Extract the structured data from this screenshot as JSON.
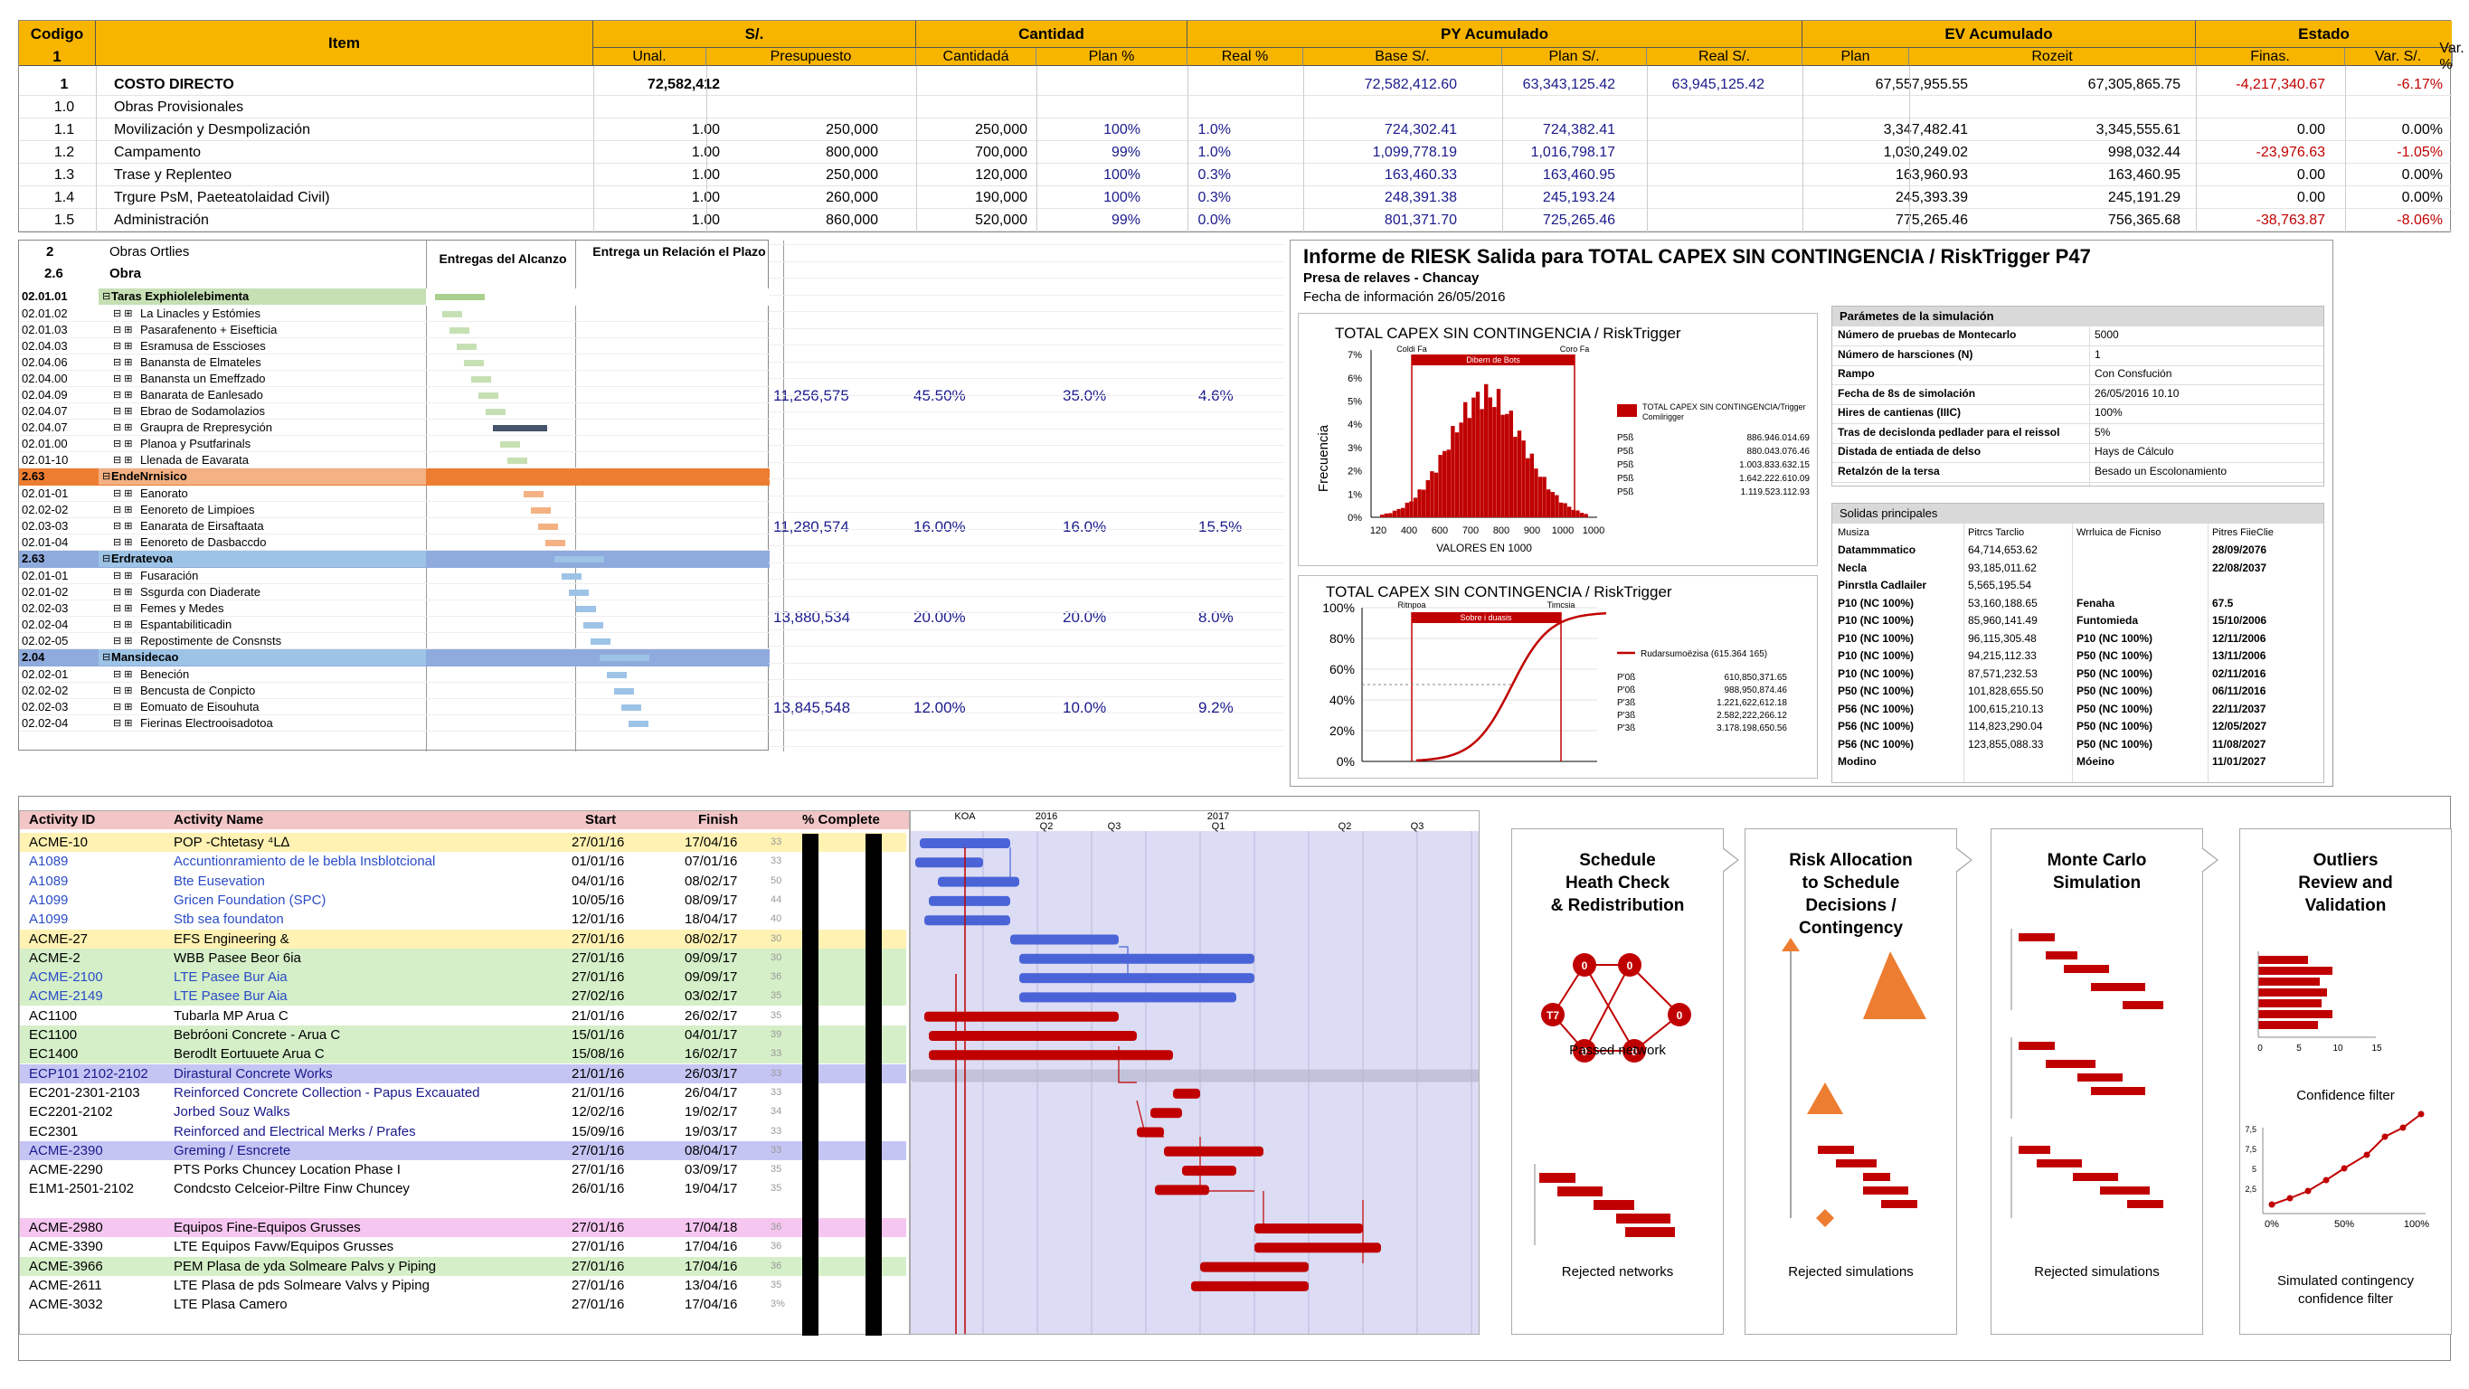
{
  "top_table": {
    "headers": {
      "codigo": "Codigo",
      "codigo_sub": "1",
      "item": "Item",
      "soles": "S/.",
      "cantidad": "Cantidad",
      "py": "PY Acumulado",
      "ev": "EV Acumulado",
      "estado": "Estado",
      "sub": [
        "Unal.",
        "Presupuesto",
        "Cantidadá",
        "Plan %",
        "Real %",
        "Base S/.",
        "Plan S/.",
        "Real S/.",
        "Plan",
        "Rozeit",
        "Finas.",
        "Var. S/.",
        "Var. %"
      ]
    },
    "rows": [
      {
        "code": "1",
        "item": "COSTO DIRECTO",
        "bold": true,
        "unal": "72,582,412",
        "pres": "",
        "cant": "",
        "plan": "",
        "real": "",
        "base": "72,582,412.60",
        "plans": "63,343,125.42",
        "reals": "63,945,125.42",
        "evplan": "67,557,955.55",
        "finas": "67,305,865.75",
        "vars": "-4,217,340.67",
        "varp": "-6.17%"
      },
      {
        "code": "1.0",
        "item": "Obras Provisionales",
        "bold": false,
        "unal": "",
        "pres": "",
        "cant": "",
        "plan": "",
        "real": "",
        "base": "",
        "plans": "",
        "reals": "",
        "evplan": "",
        "finas": "",
        "vars": "",
        "varp": ""
      },
      {
        "code": "1.1",
        "item": "Movilización y Desmpolización",
        "bold": false,
        "unal": "1.00",
        "pres": "250,000",
        "cant": "250,000",
        "plan": "100%",
        "real": "1.0%",
        "base": "724,302.41",
        "plans": "724,382.41",
        "reals": "",
        "evplan": "3,347,482.41",
        "finas": "3,345,555.61",
        "vars": "0.00",
        "varp": "0.00%"
      },
      {
        "code": "1.2",
        "item": "Campamento",
        "bold": false,
        "unal": "1.00",
        "pres": "800,000",
        "cant": "700,000",
        "plan": "99%",
        "real": "1.0%",
        "base": "1,099,778.19",
        "plans": "1,016,798.17",
        "reals": "",
        "evplan": "1,030,249.02",
        "finas": "998,032.44",
        "vars": "-23,976.63",
        "varp": "-1.05%"
      },
      {
        "code": "1.3",
        "item": "Trase y Replenteo",
        "bold": false,
        "unal": "1.00",
        "pres": "250,000",
        "cant": "120,000",
        "plan": "100%",
        "real": "0.3%",
        "base": "163,460.33",
        "plans": "163,460.95",
        "reals": "",
        "evplan": "163,960.93",
        "finas": "163,460.95",
        "vars": "0.00",
        "varp": "0.00%"
      },
      {
        "code": "1.4",
        "item": "Trgure PsM, Paeteatolaidad Civil)",
        "bold": false,
        "unal": "1.00",
        "pres": "260,000",
        "cant": "190,000",
        "plan": "100%",
        "real": "0.3%",
        "base": "248,391.38",
        "plans": "245,193.24",
        "reals": "",
        "evplan": "245,393.39",
        "finas": "245,191.29",
        "vars": "0.00",
        "varp": "0.00%"
      },
      {
        "code": "1.5",
        "item": "Administración",
        "bold": false,
        "unal": "1.00",
        "pres": "860,000",
        "cant": "520,000",
        "plan": "99%",
        "real": "0.0%",
        "base": "801,371.70",
        "plans": "725,265.46",
        "reals": "",
        "evplan": "775,265.46",
        "finas": "756,365.68",
        "vars": "-38,763.87",
        "varp": "-8.06%"
      }
    ]
  },
  "mid_table": {
    "row_a": {
      "code": "2",
      "item": "Obras Ortlies"
    },
    "row_b": {
      "code": "2.6",
      "item": "Obra"
    },
    "col_entregas": "Entregas del Alcanzo",
    "col_relacion": "Entrega un Relación el Plazo",
    "groups": [
      {
        "code": "02.01.01",
        "label": "Taras Exphiolelebimenta",
        "color": "#c6e0b4",
        "bar": "#a9d08e",
        "rows": [
          {
            "code": "02.01.02",
            "label": "La Linacles y Estómies"
          },
          {
            "code": "02.01.03",
            "label": "Pasarafenento + Eisefticia"
          },
          {
            "code": "02.04.03",
            "label": "Esramusa de Esscioses"
          },
          {
            "code": "02.04.06",
            "label": "Banansta de Elmateles"
          },
          {
            "code": "02.04.00",
            "label": "Banansta un Emeffzado"
          },
          {
            "code": "02.04.09",
            "label": "Banarata de Eanlesado"
          },
          {
            "code": "02.04.07",
            "label": "Ebrao de Sodamolazios"
          },
          {
            "code": "02.04.07",
            "label": "Graupra de Rrepresyción"
          },
          {
            "code": "02.01.00",
            "label": "Planoa y Psutfarinals"
          },
          {
            "code": "02.01-10",
            "label": "Llenada de Eavarata"
          }
        ],
        "vals": [
          "11,256,575",
          "45.50%",
          "35.0%",
          "4.6%"
        ]
      },
      {
        "code": "2.63",
        "label": "EndeNrnisico",
        "color": "#f4b183",
        "bar": "#ed7d31",
        "head": "#ed7d31",
        "rows": [
          {
            "code": "02.01-01",
            "label": "Eanorato"
          },
          {
            "code": "02.02-02",
            "label": "Eenoreto de Limpioes"
          },
          {
            "code": "02.03-03",
            "label": "Eanarata de Eirsaftaata"
          },
          {
            "code": "02.01-04",
            "label": "Eenoreto de Dasbaccdo"
          }
        ],
        "vals": [
          "11,280,574",
          "16.00%",
          "16.0%",
          "15.5%"
        ]
      },
      {
        "code": "2.63",
        "label": "Erdratevoa",
        "color": "#9dc3e6",
        "bar": "#9dc3e6",
        "head": "#8faadc",
        "rows": [
          {
            "code": "02.01-01",
            "label": "Fusaración"
          },
          {
            "code": "02.01-02",
            "label": "Ssgurda con Diaderate"
          },
          {
            "code": "02.02-03",
            "label": "Femes y Medes"
          },
          {
            "code": "02.02-04",
            "label": "Espantabiliticadin"
          },
          {
            "code": "02.02-05",
            "label": "Repostimente de Consnsts"
          }
        ],
        "vals": [
          "13,880,534",
          "20.00%",
          "20.0%",
          "8.0%"
        ]
      },
      {
        "code": "2.04",
        "label": "Mansidecao",
        "color": "#9dc3e6",
        "bar": "#9dc3e6",
        "head": "#8faadc",
        "rows": [
          {
            "code": "02.02-01",
            "label": "Beneción"
          },
          {
            "code": "02.02-02",
            "label": "Bencusta de Conpicto"
          },
          {
            "code": "02.02-03",
            "label": "Eomuato de Eisouhuta"
          },
          {
            "code": "02.02-04",
            "label": "Fierinas Electrooisadotoa"
          }
        ],
        "vals": [
          "13,845,548",
          "12.00%",
          "10.0%",
          "9.2%"
        ]
      }
    ]
  },
  "risk_report": {
    "title": "Informe de RIESK Salida para TOTAL CAPEX SIN CONTINGENCIA / RiskTrigger P47",
    "project": "Presa de relaves - Chancay",
    "date": "Fecha de información 26/05/2016",
    "hist": {
      "title": "TOTAL CAPEX SIN CONTINGENCIA / RiskTrigger",
      "ylabel": "Frecuencia",
      "xlabel": "VALORES EN 1000",
      "band_label": "Dibern de Bots",
      "left_tag": "Coldi Fa",
      "right_tag": "Coro Fa",
      "legend": "TOTAL CAPEX SIN CONTINGENCIA/Trigger",
      "legend2": "Comilrigger",
      "stats": [
        [
          "P5ß",
          "886.946.014.69"
        ],
        [
          "P5ß",
          "880.043.076.46"
        ],
        [
          "P5ß",
          "1.003.833.632.15"
        ],
        [
          "P5ß",
          "1.642.222.610.09"
        ],
        [
          "P5ß",
          "1.119.523.112.93"
        ]
      ]
    },
    "cdf": {
      "title": "TOTAL CAPEX SIN CONTINGENCIA / RiskTrigger",
      "band_label": "Sobre i duasis",
      "left_tag": "Ritnpoa",
      "right_tag": "Timcsia",
      "legend": "Rudarsumoëzisa (615.364 165)",
      "stats": [
        [
          "P'0ß",
          "610,850,371.65"
        ],
        [
          "P'0ß",
          "988,950,874.46"
        ],
        [
          "P'3ß",
          "1.221,622,612.18"
        ],
        [
          "P'3ß",
          "2.582,222,266.12"
        ],
        [
          "P'3ß",
          "3.178.198,650.56"
        ]
      ]
    },
    "params": {
      "title": "Parámetes de la simulación",
      "rows": [
        [
          "Número de pruebas de Montecarlo",
          "5000"
        ],
        [
          "Número de harsciones (N)",
          "1"
        ],
        [
          "Rampo",
          "Con Consfución"
        ],
        [
          "Fecha de 8s de simolación",
          "26/05/2016  10.10"
        ],
        [
          "Hires de cantienas (IIIC)",
          "100%"
        ],
        [
          "Tras de decislonda pedlader para el reissol",
          "5%"
        ],
        [
          "Distada de entiada de delso",
          "Hays de Cálculo"
        ],
        [
          "Retalzón de la tersa",
          "Besado un Escolonamiento"
        ]
      ]
    },
    "solidas": {
      "title": "Solidas principales",
      "cols": [
        "Musiza",
        "Pitrcs Tarclio",
        "Wrrluica de Ficniso",
        "Pitres FiieClie"
      ],
      "rows": [
        [
          "Datammmatico",
          "64,714,653.62",
          "",
          "28/09/2076"
        ],
        [
          "Necla",
          "93,185,011.62",
          "",
          "22/08/2037"
        ],
        [
          "Pinrstla Cadlailer",
          "5,565,195.54",
          "",
          ""
        ],
        [
          "P10 (NC 100%)",
          "53,160,188.65",
          "Fenaha",
          "67.5"
        ],
        [
          "P10 (NC 100%)",
          "85,960,141.49",
          "Funtomieda",
          "15/10/2006"
        ],
        [
          "P10 (NC 100%)",
          "96,115,305.48",
          "P10 (NC 100%)",
          "12/11/2006"
        ],
        [
          "P10 (NC 100%)",
          "94,215,112.33",
          "P50 (NC 100%)",
          "13/11/2006"
        ],
        [
          "P10 (NC 100%)",
          "87,571,232.53",
          "P50 (NC 100%)",
          "02/11/2016"
        ],
        [
          "P50 (NC 100%)",
          "101,828,655.50",
          "P50 (NC 100%)",
          "06/11/2016"
        ],
        [
          "P56 (NC 100%)",
          "100,615,210.13",
          "P50 (NC 100%)",
          "22/11/2037"
        ],
        [
          "P56 (NC 100%)",
          "114,823,290.04",
          "P50 (NC 100%)",
          "12/05/2027"
        ],
        [
          "P56 (NC 100%)",
          "123,855,088.33",
          "P50 (NC 100%)",
          "11/08/2027"
        ],
        [
          "Modino",
          "",
          "Móeino",
          "11/01/2027"
        ]
      ]
    }
  },
  "activity_table": {
    "cols": {
      "id": "Activity ID",
      "name": "Activity Name",
      "start": "Start",
      "finish": "Finish",
      "pct": "% Complete"
    },
    "timeline": {
      "top": [
        "KOA",
        "2016",
        "",
        "2017",
        ""
      ],
      "q": [
        "Q2",
        "Q3",
        "Q1",
        "Q2",
        "Q3"
      ]
    },
    "rows": [
      {
        "id": "ACME-10",
        "name": "POP -Chtetasy ⁴L∆",
        "start": "27/01/16",
        "finish": "17/04/16",
        "n": "33",
        "bg": "#fff2b3",
        "idc": "#000",
        "nc": "#000"
      },
      {
        "id": "A1089",
        "name": "Accuntionramiento de le bebla Insblotcional",
        "start": "01/01/16",
        "finish": "07/01/16",
        "n": "33",
        "bg": "#fff",
        "idc": "#2a4cc7",
        "nc": "#2a4cc7"
      },
      {
        "id": "A1089",
        "name": "Bte Eusevation",
        "start": "04/01/16",
        "finish": "08/02/17",
        "n": "50",
        "bg": "#fff",
        "idc": "#2a4cc7",
        "nc": "#2a4cc7"
      },
      {
        "id": "A1099",
        "name": "Gricen Foundation (SPC)",
        "start": "10/05/16",
        "finish": "08/09/17",
        "n": "44",
        "bg": "#fff",
        "idc": "#2a4cc7",
        "nc": "#2a4cc7"
      },
      {
        "id": "A1099",
        "name": "Stb sea foundaton",
        "start": "12/01/16",
        "finish": "18/04/17",
        "n": "40",
        "bg": "#fff",
        "idc": "#2a4cc7",
        "nc": "#2a4cc7"
      },
      {
        "id": "ACME-27",
        "name": "EFS Engineering &",
        "start": "27/01/16",
        "finish": "08/02/17",
        "n": "30",
        "bg": "#fff2b3",
        "idc": "#000",
        "nc": "#000"
      },
      {
        "id": "ACME-2",
        "name": "WBB Pasee Beor 6ia",
        "start": "27/01/16",
        "finish": "09/09/17",
        "n": "30",
        "bg": "#d5efc8",
        "idc": "#000",
        "nc": "#000"
      },
      {
        "id": "ACME-2100",
        "name": "LTE Pasee Bur Aia",
        "start": "27/01/16",
        "finish": "09/09/17",
        "n": "36",
        "bg": "#d5efc8",
        "idc": "#2a4cc7",
        "nc": "#2a4cc7"
      },
      {
        "id": "ACME-2149",
        "name": "LTE Pasee Bur Aia",
        "start": "27/02/16",
        "finish": "03/02/17",
        "n": "35",
        "bg": "#d5efc8",
        "idc": "#2a4cc7",
        "nc": "#2a4cc7"
      },
      {
        "id": "AC1100",
        "name": "Tubarla MP Arua C",
        "start": "21/01/16",
        "finish": "26/02/17",
        "n": "35",
        "bg": "#fff",
        "idc": "#000",
        "nc": "#000"
      },
      {
        "id": "EC1100",
        "name": "Bebróoni Concrete - Arua C",
        "start": "15/01/16",
        "finish": "04/01/17",
        "n": "39",
        "bg": "#d5efc8",
        "idc": "#000",
        "nc": "#000"
      },
      {
        "id": "EC1400",
        "name": "Berodlt Eortuuete Arua C",
        "start": "15/08/16",
        "finish": "16/02/17",
        "n": "33",
        "bg": "#d5efc8",
        "idc": "#000",
        "nc": "#000"
      },
      {
        "id": "ECP101 2102-2102",
        "name": "Dirastural Concrete Works",
        "start": "21/01/16",
        "finish": "26/03/17",
        "n": "33",
        "bg": "#c5c5f4",
        "idc": "#1a1a8c",
        "nc": "#1a1a8c"
      },
      {
        "id": "EC201-2301-2103",
        "name": "Reinforced Concrete Collection - Papus Excauated",
        "start": "21/01/16",
        "finish": "26/04/17",
        "n": "33",
        "bg": "#fff",
        "idc": "#000",
        "nc": "#1a1a8c"
      },
      {
        "id": "EC2201-2102",
        "name": "Jorbed Souz Walks",
        "start": "12/02/16",
        "finish": "19/02/17",
        "n": "34",
        "bg": "#fff",
        "idc": "#000",
        "nc": "#1a1a8c"
      },
      {
        "id": "EC2301",
        "name": "Reinforced and Electrical Merks / Prafes",
        "start": "15/09/16",
        "finish": "19/03/17",
        "n": "33",
        "bg": "#fff",
        "idc": "#000",
        "nc": "#1a1a8c"
      },
      {
        "id": "ACME-2390",
        "name": "Greming / Esncrete",
        "start": "27/01/16",
        "finish": "08/04/17",
        "n": "33",
        "bg": "#c5c5f4",
        "idc": "#1a1a8c",
        "nc": "#1a1a8c"
      },
      {
        "id": "ACME-2290",
        "name": "PTS Porks Chuncey Location Phase I",
        "start": "27/01/16",
        "finish": "03/09/17",
        "n": "35",
        "bg": "#fff",
        "idc": "#000",
        "nc": "#000"
      },
      {
        "id": "E1M1-2501-2102",
        "name": "Condcsto Celceior-Piltre Finw Chuncey",
        "start": "26/01/16",
        "finish": "19/04/17",
        "n": "35",
        "bg": "#fff",
        "idc": "#000",
        "nc": "#000"
      },
      {
        "id": "",
        "name": "",
        "start": "",
        "finish": "",
        "n": "",
        "bg": "#fff",
        "idc": "#000",
        "nc": "#000"
      },
      {
        "id": "ACME-2980",
        "name": "Equipos Fine-Equipos Grusses",
        "start": "27/01/16",
        "finish": "17/04/18",
        "n": "36",
        "bg": "#f5c6f0",
        "idc": "#000",
        "nc": "#000"
      },
      {
        "id": "ACME-3390",
        "name": "LTE Equipos Favw/Equipos Grusses",
        "start": "27/01/16",
        "finish": "17/04/16",
        "n": "36",
        "bg": "#fff",
        "idc": "#000",
        "nc": "#000"
      },
      {
        "id": "ACME-3966",
        "name": "PEM Plasa de yda Solmeare Palvs y Piping",
        "start": "27/01/16",
        "finish": "17/04/16",
        "n": "36",
        "bg": "#d5efc8",
        "idc": "#000",
        "nc": "#000"
      },
      {
        "id": "ACME-2611",
        "name": "LTE Plasa de pds Solmeare Valvs y Piping",
        "start": "27/01/16",
        "finish": "13/04/16",
        "n": "35",
        "bg": "#fff",
        "idc": "#000",
        "nc": "#000"
      },
      {
        "id": "ACME-3032",
        "name": "LTE Plasa Camero",
        "start": "27/01/16",
        "finish": "17/04/16",
        "n": "3%",
        "bg": "#fff",
        "idc": "#000",
        "nc": "#000"
      }
    ]
  },
  "process": [
    {
      "title": "Schedule\nHeath Check\n& Redistribution",
      "cap1": "Passed network",
      "cap2": "Rejected networks",
      "nodes": [
        "0",
        "0",
        "0",
        "0",
        "0",
        "0",
        "T7"
      ]
    },
    {
      "title": "Risk Allocation\nto Schedule\nDecisions /\nContingency",
      "cap1": "",
      "cap2": "Rejected simulations"
    },
    {
      "title": "Monte Carlo\nSimulation",
      "cap1": "",
      "cap2": "Rejected simulations"
    },
    {
      "title": "Outliers\nReview and\nValidation",
      "cap1": "Confidence filter",
      "cap2": "Simulated contingency\nconfidence filter",
      "ax1": [
        "0",
        "5",
        "10",
        "15"
      ],
      "ax2": [
        "0%",
        "50%",
        "100%"
      ],
      "ay2": [
        "7,5",
        "7,5",
        "5",
        "2,5"
      ]
    }
  ],
  "colors": {
    "orange": "#f7b500",
    "red": "#c00000",
    "blue": "#4a64d8",
    "gantt_bg": "#dcdcf4"
  }
}
